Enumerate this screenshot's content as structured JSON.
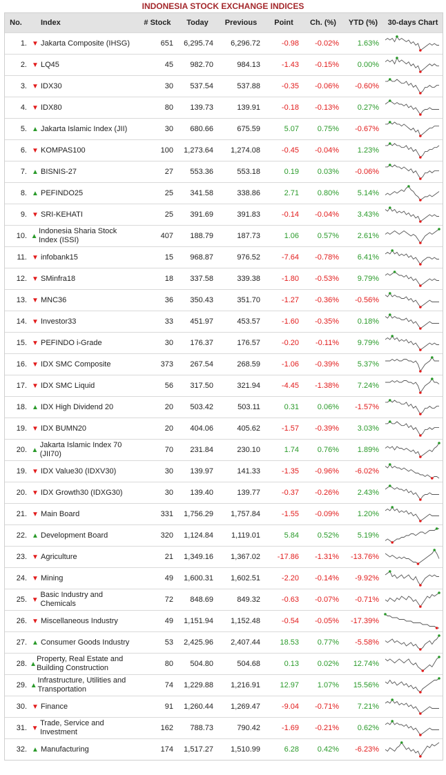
{
  "title": "INDONESIA STOCK EXCHANGE INDICES",
  "headers": {
    "no": "No.",
    "index": "Index",
    "stock": "# Stock",
    "today": "Today",
    "previous": "Previous",
    "point": "Point",
    "ch": "Ch. (%)",
    "ytd": "YTD (%)",
    "chart": "30-days Chart"
  },
  "colors": {
    "up": "#2a9a2a",
    "down": "#e21b1b",
    "title": "#a4282c"
  },
  "rows": [
    {
      "no": "1.",
      "dir": "down",
      "name": "Jakarta Composite (IHSG)",
      "stocks": "651",
      "today": "6,295.74",
      "prev": "6,296.72",
      "point": "-0.98",
      "ch": "-0.02%",
      "ytd": "1.63%",
      "spark": [
        3,
        2,
        3,
        2,
        4,
        1,
        3,
        2,
        3,
        4,
        3,
        5,
        4,
        6,
        5,
        9,
        8,
        7,
        6,
        5,
        6,
        5,
        6,
        6
      ]
    },
    {
      "no": "2.",
      "dir": "down",
      "name": "LQ45",
      "stocks": "45",
      "today": "982.70",
      "prev": "984.13",
      "point": "-1.43",
      "ch": "-0.15%",
      "ytd": "0.00%",
      "spark": [
        4,
        3,
        4,
        3,
        5,
        2,
        4,
        3,
        4,
        5,
        4,
        6,
        5,
        7,
        6,
        9,
        8,
        7,
        6,
        5,
        6,
        5,
        6,
        6
      ]
    },
    {
      "no": "3.",
      "dir": "down",
      "name": "IDX30",
      "stocks": "30",
      "today": "537.54",
      "prev": "537.88",
      "point": "-0.35",
      "ch": "-0.06%",
      "ytd": "-0.60%",
      "spark": [
        3,
        3,
        2,
        3,
        3,
        2,
        3,
        4,
        4,
        3,
        5,
        4,
        6,
        5,
        7,
        9,
        8,
        6,
        6,
        5,
        6,
        6,
        5,
        5
      ]
    },
    {
      "no": "4.",
      "dir": "down",
      "name": "IDX80",
      "stocks": "80",
      "today": "139.73",
      "prev": "139.91",
      "point": "-0.18",
      "ch": "-0.13%",
      "ytd": "0.27%",
      "spark": [
        3,
        2,
        1,
        2,
        3,
        2,
        3,
        3,
        4,
        3,
        5,
        4,
        6,
        5,
        7,
        9,
        7,
        6,
        6,
        5,
        6,
        6,
        6,
        6
      ]
    },
    {
      "no": "5.",
      "dir": "up",
      "name": "Jakarta Islamic Index (JII)",
      "stocks": "30",
      "today": "680.66",
      "prev": "675.59",
      "point": "5.07",
      "ch": "0.75%",
      "ytd": "-0.67%",
      "spark": [
        3,
        3,
        2,
        3,
        2,
        3,
        3,
        4,
        3,
        4,
        5,
        6,
        5,
        7,
        6,
        9,
        8,
        7,
        6,
        5,
        5,
        4,
        4,
        4
      ]
    },
    {
      "no": "6.",
      "dir": "down",
      "name": "KOMPAS100",
      "stocks": "100",
      "today": "1,273.64",
      "prev": "1,274.08",
      "point": "-0.45",
      "ch": "-0.04%",
      "ytd": "1.23%",
      "spark": [
        3,
        3,
        2,
        3,
        2,
        3,
        3,
        4,
        4,
        3,
        5,
        4,
        6,
        5,
        7,
        9,
        8,
        6,
        6,
        5,
        5,
        4,
        4,
        3
      ]
    },
    {
      "no": "7.",
      "dir": "up",
      "name": "BISNIS-27",
      "stocks": "27",
      "today": "553.36",
      "prev": "553.18",
      "point": "0.19",
      "ch": "0.03%",
      "ytd": "-0.06%",
      "spark": [
        3,
        3,
        2,
        3,
        2,
        3,
        3,
        4,
        3,
        4,
        5,
        4,
        6,
        5,
        7,
        9,
        8,
        6,
        6,
        5,
        6,
        5,
        5,
        5
      ]
    },
    {
      "no": "8.",
      "dir": "up",
      "name": "PEFINDO25",
      "stocks": "25",
      "today": "341.58",
      "prev": "338.86",
      "point": "2.71",
      "ch": "0.80%",
      "ytd": "5.14%",
      "spark": [
        6,
        5,
        6,
        5,
        4,
        5,
        4,
        3,
        4,
        2,
        1,
        3,
        4,
        6,
        7,
        9,
        8,
        7,
        7,
        6,
        7,
        6,
        5,
        4
      ]
    },
    {
      "no": "9.",
      "dir": "down",
      "name": "SRI-KEHATI",
      "stocks": "25",
      "today": "391.69",
      "prev": "391.83",
      "point": "-0.14",
      "ch": "-0.04%",
      "ytd": "3.43%",
      "spark": [
        2,
        3,
        1,
        3,
        2,
        4,
        3,
        4,
        3,
        5,
        4,
        6,
        5,
        7,
        6,
        9,
        8,
        7,
        6,
        5,
        6,
        5,
        6,
        6
      ]
    },
    {
      "no": "10.",
      "dir": "up",
      "name": "Indonesia Sharia Stock Index (ISSI)",
      "stocks": "407",
      "today": "188.79",
      "prev": "187.73",
      "point": "1.06",
      "ch": "0.57%",
      "ytd": "2.61%",
      "spark": [
        4,
        3,
        4,
        3,
        2,
        3,
        4,
        3,
        2,
        3,
        4,
        5,
        4,
        5,
        7,
        9,
        7,
        5,
        4,
        3,
        4,
        3,
        2,
        1
      ]
    },
    {
      "no": "11.",
      "dir": "down",
      "name": "infobank15",
      "stocks": "15",
      "today": "968.87",
      "prev": "976.52",
      "point": "-7.64",
      "ch": "-0.78%",
      "ytd": "6.41%",
      "spark": [
        3,
        2,
        3,
        1,
        3,
        2,
        4,
        3,
        4,
        3,
        5,
        4,
        6,
        5,
        7,
        9,
        7,
        6,
        5,
        5,
        6,
        5,
        6,
        6
      ]
    },
    {
      "no": "12.",
      "dir": "down",
      "name": "SMinfra18",
      "stocks": "18",
      "today": "337.58",
      "prev": "339.38",
      "point": "-1.80",
      "ch": "-0.53%",
      "ytd": "9.79%",
      "spark": [
        3,
        2,
        3,
        2,
        1,
        2,
        3,
        3,
        4,
        3,
        5,
        4,
        6,
        5,
        7,
        9,
        8,
        7,
        6,
        5,
        6,
        5,
        6,
        6
      ]
    },
    {
      "no": "13.",
      "dir": "down",
      "name": "MNC36",
      "stocks": "36",
      "today": "350.43",
      "prev": "351.70",
      "point": "-1.27",
      "ch": "-0.36%",
      "ytd": "-0.56%",
      "spark": [
        2,
        3,
        1,
        3,
        2,
        3,
        3,
        4,
        4,
        3,
        5,
        4,
        6,
        5,
        7,
        9,
        8,
        7,
        6,
        5,
        6,
        6,
        6,
        6
      ]
    },
    {
      "no": "14.",
      "dir": "down",
      "name": "Investor33",
      "stocks": "33",
      "today": "451.97",
      "prev": "453.57",
      "point": "-1.60",
      "ch": "-0.35%",
      "ytd": "0.18%",
      "spark": [
        2,
        3,
        1,
        3,
        2,
        3,
        3,
        4,
        4,
        3,
        5,
        4,
        6,
        5,
        7,
        9,
        8,
        7,
        6,
        5,
        6,
        6,
        6,
        6
      ]
    },
    {
      "no": "15.",
      "dir": "down",
      "name": "PEFINDO i-Grade",
      "stocks": "30",
      "today": "176.37",
      "prev": "176.57",
      "point": "-0.20",
      "ch": "-0.11%",
      "ytd": "9.79%",
      "spark": [
        3,
        2,
        3,
        1,
        3,
        2,
        4,
        3,
        4,
        3,
        5,
        4,
        6,
        5,
        7,
        9,
        8,
        7,
        6,
        5,
        6,
        5,
        6,
        6
      ]
    },
    {
      "no": "16.",
      "dir": "down",
      "name": "IDX SMC Composite",
      "stocks": "373",
      "today": "267.54",
      "prev": "268.59",
      "point": "-1.06",
      "ch": "-0.39%",
      "ytd": "5.37%",
      "spark": [
        3,
        3,
        3,
        2,
        3,
        2,
        3,
        3,
        2,
        2,
        3,
        3,
        4,
        3,
        5,
        9,
        7,
        5,
        4,
        3,
        1,
        3,
        3,
        3
      ]
    },
    {
      "no": "17.",
      "dir": "down",
      "name": "IDX SMC Liquid",
      "stocks": "56",
      "today": "317.50",
      "prev": "321.94",
      "point": "-4.45",
      "ch": "-1.38%",
      "ytd": "7.24%",
      "spark": [
        3,
        3,
        3,
        2,
        3,
        2,
        3,
        3,
        2,
        2,
        3,
        3,
        4,
        3,
        5,
        9,
        7,
        5,
        4,
        3,
        1,
        3,
        3,
        4
      ]
    },
    {
      "no": "18.",
      "dir": "up",
      "name": "IDX High Dividend 20",
      "stocks": "20",
      "today": "503.42",
      "prev": "503.11",
      "point": "0.31",
      "ch": "0.06%",
      "ytd": "-1.57%",
      "spark": [
        3,
        3,
        2,
        3,
        2,
        3,
        3,
        4,
        4,
        3,
        5,
        4,
        6,
        5,
        7,
        9,
        8,
        6,
        6,
        5,
        6,
        6,
        5,
        5
      ]
    },
    {
      "no": "19.",
      "dir": "down",
      "name": "IDX BUMN20",
      "stocks": "20",
      "today": "404.06",
      "prev": "405.62",
      "point": "-1.57",
      "ch": "-0.39%",
      "ytd": "3.03%",
      "spark": [
        3,
        3,
        2,
        3,
        3,
        2,
        3,
        4,
        4,
        3,
        5,
        4,
        6,
        5,
        7,
        9,
        8,
        6,
        6,
        5,
        6,
        5,
        5,
        5
      ]
    },
    {
      "no": "20.",
      "dir": "up",
      "name": "Jakarta Islamic Index 70 (JII70)",
      "stocks": "70",
      "today": "231.84",
      "prev": "230.10",
      "point": "1.74",
      "ch": "0.76%",
      "ytd": "1.89%",
      "spark": [
        4,
        3,
        4,
        3,
        5,
        3,
        4,
        4,
        5,
        4,
        5,
        6,
        5,
        7,
        6,
        9,
        8,
        7,
        6,
        5,
        6,
        4,
        3,
        1
      ]
    },
    {
      "no": "19.",
      "dir": "down",
      "name": "IDX Value30 (IDXV30)",
      "stocks": "30",
      "today": "139.97",
      "prev": "141.33",
      "point": "-1.35",
      "ch": "-0.96%",
      "ytd": "-6.02%",
      "spark": [
        2,
        3,
        1,
        3,
        2,
        3,
        3,
        4,
        3,
        4,
        5,
        4,
        5,
        6,
        6,
        7,
        7,
        8,
        7,
        8,
        9,
        8,
        8,
        9
      ]
    },
    {
      "no": "20.",
      "dir": "down",
      "name": "IDX Growth30 (IDXG30)",
      "stocks": "30",
      "today": "139.40",
      "prev": "139.77",
      "point": "-0.37",
      "ch": "-0.26%",
      "ytd": "2.43%",
      "spark": [
        3,
        2,
        1,
        2,
        3,
        2,
        3,
        3,
        4,
        3,
        5,
        4,
        6,
        5,
        7,
        9,
        7,
        6,
        6,
        5,
        6,
        6,
        6,
        6
      ]
    },
    {
      "no": "21.",
      "dir": "down",
      "name": "Main Board",
      "stocks": "331",
      "today": "1,756.29",
      "prev": "1,757.84",
      "point": "-1.55",
      "ch": "-0.09%",
      "ytd": "1.20%",
      "spark": [
        3,
        2,
        3,
        1,
        3,
        2,
        4,
        3,
        4,
        3,
        5,
        4,
        6,
        5,
        7,
        9,
        8,
        7,
        6,
        5,
        6,
        6,
        6,
        6
      ]
    },
    {
      "no": "22.",
      "dir": "up",
      "name": "Development Board",
      "stocks": "320",
      "today": "1,124.84",
      "prev": "1,119.01",
      "point": "5.84",
      "ch": "0.52%",
      "ytd": "5.19%",
      "spark": [
        8,
        7,
        8,
        9,
        8,
        7,
        7,
        6,
        6,
        5,
        5,
        4,
        4,
        5,
        4,
        3,
        3,
        4,
        3,
        2,
        2,
        2,
        1,
        1
      ]
    },
    {
      "no": "23.",
      "dir": "down",
      "name": "Agriculture",
      "stocks": "21",
      "today": "1,349.16",
      "prev": "1,367.02",
      "point": "-17.86",
      "ch": "-1.31%",
      "ytd": "-13.76%",
      "spark": [
        3,
        4,
        5,
        4,
        5,
        6,
        5,
        6,
        5,
        6,
        6,
        7,
        8,
        8,
        9,
        8,
        7,
        6,
        5,
        4,
        3,
        1,
        3,
        6
      ]
    },
    {
      "no": "24.",
      "dir": "down",
      "name": "Mining",
      "stocks": "49",
      "today": "1,600.31",
      "prev": "1,602.51",
      "point": "-2.20",
      "ch": "-0.14%",
      "ytd": "-9.92%",
      "spark": [
        3,
        2,
        1,
        4,
        3,
        5,
        4,
        3,
        5,
        4,
        3,
        5,
        6,
        4,
        7,
        9,
        7,
        5,
        4,
        3,
        4,
        3,
        4,
        4
      ]
    },
    {
      "no": "25.",
      "dir": "down",
      "name": "Basic Industry and Chemicals",
      "stocks": "72",
      "today": "848.69",
      "prev": "849.32",
      "point": "-0.63",
      "ch": "-0.07%",
      "ytd": "-0.71%",
      "spark": [
        5,
        6,
        4,
        5,
        6,
        4,
        5,
        3,
        4,
        5,
        3,
        4,
        6,
        5,
        7,
        9,
        7,
        5,
        3,
        4,
        2,
        3,
        2,
        1
      ]
    },
    {
      "no": "26.",
      "dir": "down",
      "name": "Miscellaneous Industry",
      "stocks": "49",
      "today": "1,151.94",
      "prev": "1,152.48",
      "point": "-0.54",
      "ch": "-0.05%",
      "ytd": "-17.39%",
      "spark": [
        1,
        2,
        2,
        3,
        3,
        3,
        4,
        4,
        4,
        5,
        5,
        5,
        6,
        6,
        6,
        6,
        7,
        7,
        7,
        8,
        8,
        8,
        9,
        9
      ]
    },
    {
      "no": "27.",
      "dir": "up",
      "name": "Consumer Goods Industry",
      "stocks": "53",
      "today": "2,425.96",
      "prev": "2,407.44",
      "point": "18.53",
      "ch": "0.77%",
      "ytd": "-5.58%",
      "spark": [
        4,
        5,
        4,
        3,
        5,
        4,
        5,
        6,
        5,
        7,
        6,
        5,
        7,
        6,
        8,
        9,
        8,
        6,
        5,
        4,
        6,
        4,
        3,
        1
      ]
    },
    {
      "no": "28.",
      "dir": "up",
      "name": "Property, Real Estate and Building Construction",
      "stocks": "80",
      "today": "504.80",
      "prev": "504.68",
      "point": "0.13",
      "ch": "0.02%",
      "ytd": "12.74%",
      "spark": [
        3,
        4,
        3,
        4,
        5,
        4,
        3,
        4,
        5,
        4,
        3,
        5,
        6,
        5,
        7,
        8,
        9,
        8,
        7,
        6,
        7,
        5,
        3,
        2
      ]
    },
    {
      "no": "29.",
      "dir": "up",
      "name": "Infrastructure, Utilities and Transportation",
      "stocks": "74",
      "today": "1,229.88",
      "prev": "1,216.91",
      "point": "12.97",
      "ch": "1.07%",
      "ytd": "15.56%",
      "spark": [
        3,
        4,
        2,
        4,
        3,
        5,
        4,
        3,
        5,
        4,
        6,
        5,
        7,
        6,
        8,
        9,
        7,
        6,
        5,
        4,
        3,
        2,
        2,
        1
      ]
    },
    {
      "no": "30.",
      "dir": "down",
      "name": "Finance",
      "stocks": "91",
      "today": "1,260.44",
      "prev": "1,269.47",
      "point": "-9.04",
      "ch": "-0.71%",
      "ytd": "7.21%",
      "spark": [
        3,
        2,
        3,
        1,
        3,
        2,
        4,
        3,
        4,
        3,
        5,
        4,
        6,
        5,
        7,
        9,
        8,
        7,
        6,
        5,
        6,
        6,
        6,
        6
      ]
    },
    {
      "no": "31.",
      "dir": "down",
      "name": "Trade, Service and Investment",
      "stocks": "162",
      "today": "788.73",
      "prev": "790.42",
      "point": "-1.69",
      "ch": "-0.21%",
      "ytd": "0.62%",
      "spark": [
        3,
        2,
        3,
        1,
        3,
        2,
        3,
        3,
        4,
        3,
        5,
        4,
        6,
        5,
        7,
        9,
        8,
        7,
        6,
        5,
        6,
        6,
        6,
        6
      ]
    },
    {
      "no": "32.",
      "dir": "up",
      "name": "Manufacturing",
      "stocks": "174",
      "today": "1,517.27",
      "prev": "1,510.99",
      "point": "6.28",
      "ch": "0.42%",
      "ytd": "-6.23%",
      "spark": [
        5,
        6,
        4,
        5,
        6,
        4,
        3,
        1,
        3,
        5,
        4,
        6,
        5,
        7,
        6,
        9,
        7,
        5,
        3,
        4,
        2,
        3,
        2,
        1
      ]
    }
  ]
}
